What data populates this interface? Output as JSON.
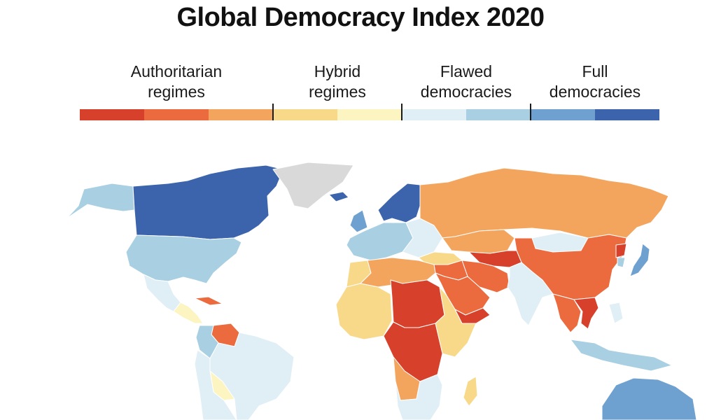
{
  "title": "Global Democracy Index 2020",
  "legend": {
    "categories": [
      {
        "label": "Authoritarian\nregimes"
      },
      {
        "label": "Hybrid\nregimes"
      },
      {
        "label": "Flawed\ndemocracies"
      },
      {
        "label": "Full\ndemocracies"
      }
    ],
    "colors": [
      "#d7402b",
      "#eb6b3f",
      "#f3a55e",
      "#f8d98a",
      "#fcf5c1",
      "#e0eff6",
      "#a8cfe2",
      "#6fa1d0",
      "#3c64ad"
    ],
    "no_data_color": "#d9d9d9"
  },
  "regions": [
    {
      "name": "canada",
      "cls": 8
    },
    {
      "name": "alaska",
      "cls": 6
    },
    {
      "name": "greenland",
      "cls": -1
    },
    {
      "name": "usa",
      "cls": 6
    },
    {
      "name": "mexico",
      "cls": 5
    },
    {
      "name": "central-america",
      "cls": 4
    },
    {
      "name": "cuba",
      "cls": 1
    },
    {
      "name": "venezuela",
      "cls": 1
    },
    {
      "name": "colombia",
      "cls": 6
    },
    {
      "name": "brazil",
      "cls": 5
    },
    {
      "name": "bolivia",
      "cls": 4
    },
    {
      "name": "argentina",
      "cls": 5
    },
    {
      "name": "scandinavia",
      "cls": 8
    },
    {
      "name": "iceland",
      "cls": 8
    },
    {
      "name": "uk",
      "cls": 7
    },
    {
      "name": "western-europe",
      "cls": 6
    },
    {
      "name": "eastern-europe",
      "cls": 5
    },
    {
      "name": "russia",
      "cls": 2
    },
    {
      "name": "kazakhstan",
      "cls": 2
    },
    {
      "name": "mongolia",
      "cls": 5
    },
    {
      "name": "china",
      "cls": 1
    },
    {
      "name": "japan",
      "cls": 7
    },
    {
      "name": "korea",
      "cls": 6
    },
    {
      "name": "north-korea",
      "cls": 0
    },
    {
      "name": "turkey",
      "cls": 3
    },
    {
      "name": "middle-east",
      "cls": 1
    },
    {
      "name": "saudi-arabia",
      "cls": 1
    },
    {
      "name": "yemen",
      "cls": 0
    },
    {
      "name": "central-asia",
      "cls": 0
    },
    {
      "name": "iran",
      "cls": 1
    },
    {
      "name": "india",
      "cls": 5
    },
    {
      "name": "southeast-asia",
      "cls": 1
    },
    {
      "name": "vietnam",
      "cls": 0
    },
    {
      "name": "indonesia",
      "cls": 6
    },
    {
      "name": "philippines",
      "cls": 5
    },
    {
      "name": "australia",
      "cls": 7
    },
    {
      "name": "north-africa",
      "cls": 2
    },
    {
      "name": "morocco",
      "cls": 3
    },
    {
      "name": "west-africa",
      "cls": 3
    },
    {
      "name": "sudan-chad",
      "cls": 0
    },
    {
      "name": "central-africa",
      "cls": 0
    },
    {
      "name": "east-africa",
      "cls": 3
    },
    {
      "name": "southern-africa",
      "cls": 5
    },
    {
      "name": "angola",
      "cls": 2
    },
    {
      "name": "madagascar",
      "cls": 3
    }
  ]
}
